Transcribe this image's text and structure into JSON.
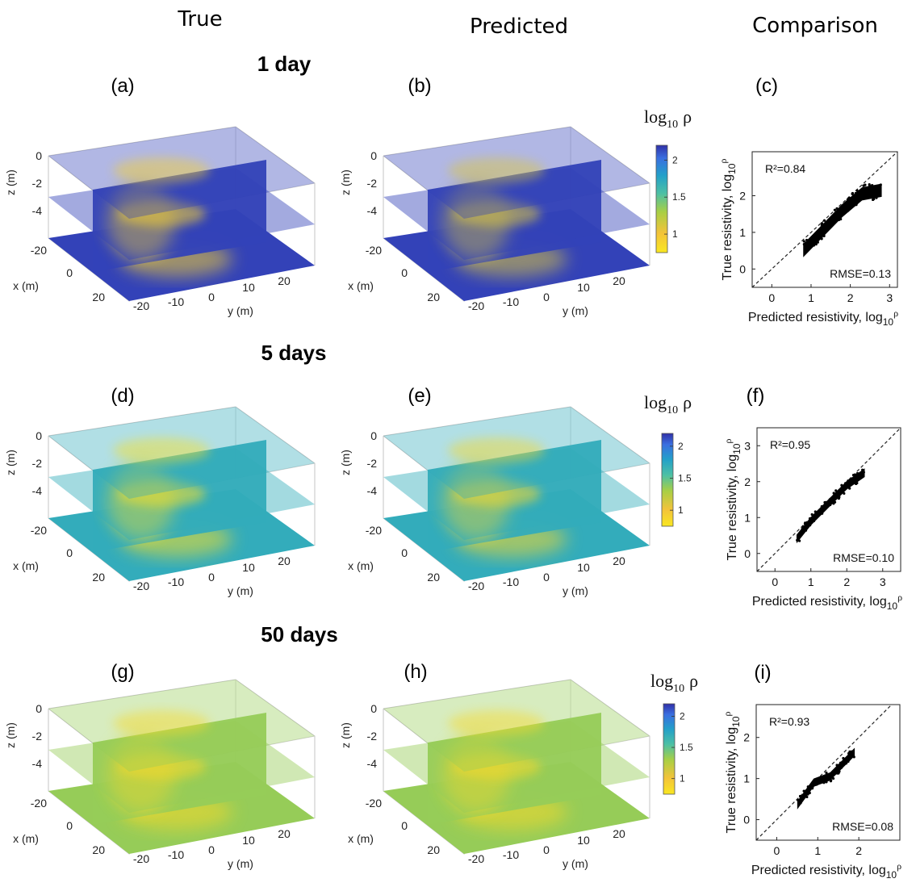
{
  "column_headers": [
    "True",
    "Predicted",
    "Comparison"
  ],
  "time_labels": [
    "1 day",
    "5 days",
    "50 days"
  ],
  "panel_labels": [
    "(a)",
    "(b)",
    "(c)",
    "(d)",
    "(e)",
    "(f)",
    "(g)",
    "(h)",
    "(i)"
  ],
  "colorbar": {
    "title_base": "log",
    "title_sub": "10",
    "title_symbol": "ρ",
    "ticks": [
      "2",
      "1.5",
      "1"
    ],
    "tick_values": [
      2,
      1.5,
      1
    ],
    "range": [
      0.75,
      2.2
    ],
    "colors": [
      "#f9e721",
      "#f3c33a",
      "#a8cf45",
      "#4dc0a4",
      "#23a0c9",
      "#3a6fe0",
      "#3030a8"
    ]
  },
  "axes3d": {
    "z_label": "z (m)",
    "x_label": "x (m)",
    "y_label": "y (m)",
    "z_ticks": [
      "0",
      "-2",
      "-4"
    ],
    "x_ticks": [
      "-20",
      "0",
      "20"
    ],
    "y_ticks": [
      "-20",
      "-10",
      "0",
      "10",
      "20"
    ]
  },
  "scatter_axes": {
    "xlabel": "Predicted resistivity, log",
    "ylabel": "True resistivity, log",
    "sub": "10",
    "sup": "ρ"
  },
  "chart_data": [
    {
      "panel": "(a)",
      "type": "heatmap",
      "title": "1 day",
      "subtitle": "True",
      "zlabel": "z (m)",
      "xlabel": "x (m)",
      "ylabel": "y (m)",
      "z_ticks": [
        0,
        -2,
        -4
      ],
      "x_ticks": [
        -20,
        0,
        20
      ],
      "y_ticks": [
        -20,
        -10,
        0,
        10,
        20
      ],
      "color_quantity": "log10 ρ",
      "color_range": [
        0.75,
        2.2
      ],
      "plume_min": 0.9,
      "background": 2.15
    },
    {
      "panel": "(b)",
      "type": "heatmap",
      "title": "1 day",
      "subtitle": "Predicted",
      "zlabel": "z (m)",
      "xlabel": "x (m)",
      "ylabel": "y (m)",
      "z_ticks": [
        0,
        -2,
        -4
      ],
      "x_ticks": [
        -20,
        0,
        20
      ],
      "y_ticks": [
        -20,
        -10,
        0,
        10,
        20
      ],
      "color_quantity": "log10 ρ",
      "color_range": [
        0.75,
        2.2
      ],
      "plume_min": 1.1,
      "background": 2.15
    },
    {
      "panel": "(c)",
      "type": "scatter",
      "title": "1 day",
      "xlabel": "Predicted resistivity, log10ρ",
      "ylabel": "True resistivity, log10ρ",
      "xlim": [
        -0.5,
        3.2
      ],
      "ylim": [
        -0.5,
        3.2
      ],
      "x_ticks": [
        0,
        1,
        2,
        3
      ],
      "y_ticks": [
        0,
        1,
        2
      ],
      "r2": "R²=0.84",
      "rmse": "RMSE=0.13",
      "band": {
        "x": [
          0.8,
          1.3,
          1.8,
          2.3,
          2.8
        ],
        "y": [
          0.5,
          1.05,
          1.6,
          2.05,
          2.15
        ],
        "spread": 0.18
      }
    },
    {
      "panel": "(d)",
      "type": "heatmap",
      "title": "5 days",
      "subtitle": "True",
      "zlabel": "z (m)",
      "xlabel": "x (m)",
      "ylabel": "y (m)",
      "z_ticks": [
        0,
        -2,
        -4
      ],
      "x_ticks": [
        -20,
        0,
        20
      ],
      "y_ticks": [
        -20,
        -10,
        0,
        10,
        20
      ],
      "color_quantity": "log10 ρ",
      "color_range": [
        0.75,
        2.2
      ],
      "plume_min": 0.8,
      "background": 1.7
    },
    {
      "panel": "(e)",
      "type": "heatmap",
      "title": "5 days",
      "subtitle": "Predicted",
      "zlabel": "z (m)",
      "xlabel": "x (m)",
      "ylabel": "y (m)",
      "z_ticks": [
        0,
        -2,
        -4
      ],
      "x_ticks": [
        -20,
        0,
        20
      ],
      "y_ticks": [
        -20,
        -10,
        0,
        10,
        20
      ],
      "color_quantity": "log10 ρ",
      "color_range": [
        0.75,
        2.2
      ],
      "plume_min": 0.85,
      "background": 1.7
    },
    {
      "panel": "(f)",
      "type": "scatter",
      "title": "5 days",
      "xlabel": "Predicted resistivity, log10ρ",
      "ylabel": "True resistivity, log10ρ",
      "xlim": [
        -0.5,
        3.5
      ],
      "ylim": [
        -0.5,
        3.5
      ],
      "x_ticks": [
        0,
        1,
        2,
        3
      ],
      "y_ticks": [
        0,
        1,
        2,
        3
      ],
      "r2": "R²=0.95",
      "rmse": "RMSE=0.10",
      "band": {
        "x": [
          0.6,
          1.0,
          1.5,
          2.0,
          2.5
        ],
        "y": [
          0.4,
          0.9,
          1.4,
          1.9,
          2.25
        ],
        "spread": 0.12
      }
    },
    {
      "panel": "(g)",
      "type": "heatmap",
      "title": "50 days",
      "subtitle": "True",
      "zlabel": "z (m)",
      "xlabel": "x (m)",
      "ylabel": "y (m)",
      "z_ticks": [
        0,
        -2,
        -4
      ],
      "x_ticks": [
        -20,
        0,
        20
      ],
      "y_ticks": [
        -20,
        -10,
        0,
        10,
        20
      ],
      "color_quantity": "log10 ρ",
      "color_range": [
        0.75,
        2.2
      ],
      "plume_min": 0.85,
      "background": 1.35
    },
    {
      "panel": "(h)",
      "type": "heatmap",
      "title": "50 days",
      "subtitle": "Predicted",
      "zlabel": "z (m)",
      "xlabel": "x (m)",
      "ylabel": "y (m)",
      "z_ticks": [
        0,
        -2,
        -4
      ],
      "x_ticks": [
        -20,
        0,
        20
      ],
      "y_ticks": [
        -20,
        -10,
        0,
        10,
        20
      ],
      "color_quantity": "log10 ρ",
      "color_range": [
        0.75,
        2.2
      ],
      "plume_min": 0.85,
      "background": 1.35
    },
    {
      "panel": "(i)",
      "type": "scatter",
      "title": "50 days",
      "xlabel": "Predicted resistivity, log10ρ",
      "ylabel": "True resistivity, log10ρ",
      "xlim": [
        -0.5,
        3.0
      ],
      "ylim": [
        -0.5,
        2.8
      ],
      "x_ticks": [
        0,
        1,
        2
      ],
      "y_ticks": [
        0,
        1,
        2
      ],
      "r2": "R²=0.93",
      "rmse": "RMSE=0.08",
      "band": {
        "x": [
          0.5,
          0.9,
          1.3,
          1.6,
          1.9
        ],
        "y": [
          0.35,
          0.9,
          1.05,
          1.35,
          1.65
        ],
        "spread": 0.1
      }
    }
  ]
}
